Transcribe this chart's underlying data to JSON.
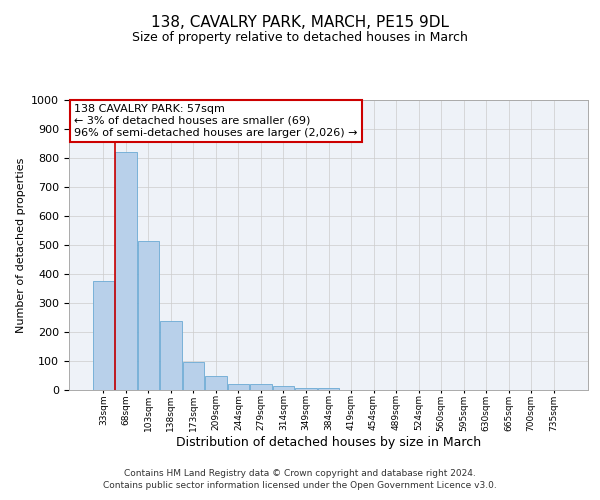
{
  "title1": "138, CAVALRY PARK, MARCH, PE15 9DL",
  "title2": "Size of property relative to detached houses in March",
  "xlabel": "Distribution of detached houses by size in March",
  "ylabel": "Number of detached properties",
  "bar_categories": [
    "33sqm",
    "68sqm",
    "103sqm",
    "138sqm",
    "173sqm",
    "209sqm",
    "244sqm",
    "279sqm",
    "314sqm",
    "349sqm",
    "384sqm",
    "419sqm",
    "454sqm",
    "489sqm",
    "524sqm",
    "560sqm",
    "595sqm",
    "630sqm",
    "665sqm",
    "700sqm",
    "735sqm"
  ],
  "bar_values": [
    375,
    820,
    513,
    237,
    95,
    50,
    22,
    22,
    15,
    8,
    8,
    0,
    0,
    0,
    0,
    0,
    0,
    0,
    0,
    0,
    0
  ],
  "bar_color": "#b8d0ea",
  "bar_edge_color": "#6aaad4",
  "vline_color": "#cc0000",
  "annotation_text": "138 CAVALRY PARK: 57sqm\n← 3% of detached houses are smaller (69)\n96% of semi-detached houses are larger (2,026) →",
  "annotation_box_color": "#ffffff",
  "annotation_box_edge_color": "#cc0000",
  "ylim": [
    0,
    1000
  ],
  "yticks": [
    0,
    100,
    200,
    300,
    400,
    500,
    600,
    700,
    800,
    900,
    1000
  ],
  "footer1": "Contains HM Land Registry data © Crown copyright and database right 2024.",
  "footer2": "Contains public sector information licensed under the Open Government Licence v3.0.",
  "plot_bg_color": "#eef2f8",
  "fig_bg_color": "#ffffff",
  "grid_color": "#cccccc",
  "title1_fontsize": 11,
  "title2_fontsize": 9,
  "ylabel_fontsize": 8,
  "xlabel_fontsize": 9,
  "ytick_fontsize": 8,
  "xtick_fontsize": 6.5,
  "annotation_fontsize": 8,
  "footer_fontsize": 6.5
}
